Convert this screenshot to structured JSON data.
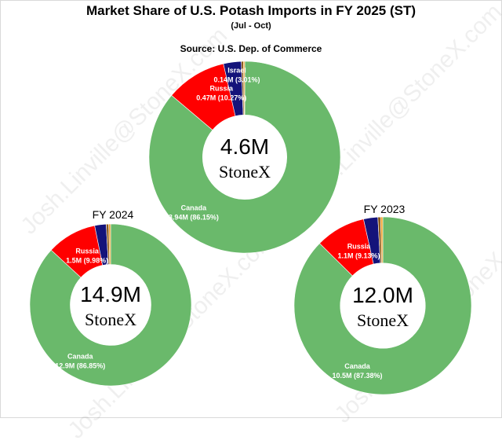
{
  "title": "Market Share of U.S. Potash Imports in FY 2025 (ST)",
  "subtitle": "(Jul - Oct)",
  "source": "Source: U.S. Dep. of Commerce",
  "watermark": "Josh.Linville@StoneX.com",
  "logo": "StoneX",
  "colors": {
    "canada": "#6ab96b",
    "russia": "#ff0000",
    "navy": "#14137a",
    "brown": "#8b5a1a",
    "gold": "#f2a12c",
    "center": "#ffffff"
  },
  "chart_data": [
    {
      "type": "pie",
      "label": "",
      "total": "4.6M",
      "slices": [
        {
          "name": "Canada",
          "value": 86.15,
          "text": "3.94M (86.15%)",
          "color": "#6ab96b"
        },
        {
          "name": "Russia",
          "value": 10.27,
          "text": "0.47M (10.27%)",
          "color": "#ff0000"
        },
        {
          "name": "Israel",
          "value": 3.01,
          "text": "0.14M (3.01%)",
          "color": "#14137a"
        },
        {
          "name": "",
          "value": 0.35,
          "text": "",
          "color": "#8b5a1a"
        },
        {
          "name": "",
          "value": 0.22,
          "text": "",
          "color": "#f2a12c"
        }
      ]
    },
    {
      "type": "pie",
      "label": "FY 2024",
      "total": "14.9M",
      "slices": [
        {
          "name": "Canada",
          "value": 86.85,
          "text": "12.9M (86.85%)",
          "color": "#6ab96b"
        },
        {
          "name": "Russia",
          "value": 9.98,
          "text": "1.5M (9.98%)",
          "color": "#ff0000"
        },
        {
          "name": "",
          "value": 2.3,
          "text": "",
          "color": "#14137a"
        },
        {
          "name": "",
          "value": 0.5,
          "text": "",
          "color": "#8b5a1a"
        },
        {
          "name": "",
          "value": 0.37,
          "text": "",
          "color": "#f2a12c"
        }
      ]
    },
    {
      "type": "pie",
      "label": "FY 2023",
      "total": "12.0M",
      "slices": [
        {
          "name": "Canada",
          "value": 87.38,
          "text": "10.5M (87.38%)",
          "color": "#6ab96b"
        },
        {
          "name": "Russia",
          "value": 9.13,
          "text": "1.1M (9.13%)",
          "color": "#ff0000"
        },
        {
          "name": "",
          "value": 2.6,
          "text": "",
          "color": "#14137a"
        },
        {
          "name": "",
          "value": 0.5,
          "text": "",
          "color": "#8b5a1a"
        },
        {
          "name": "",
          "value": 0.39,
          "text": "",
          "color": "#f2a12c"
        }
      ]
    }
  ]
}
